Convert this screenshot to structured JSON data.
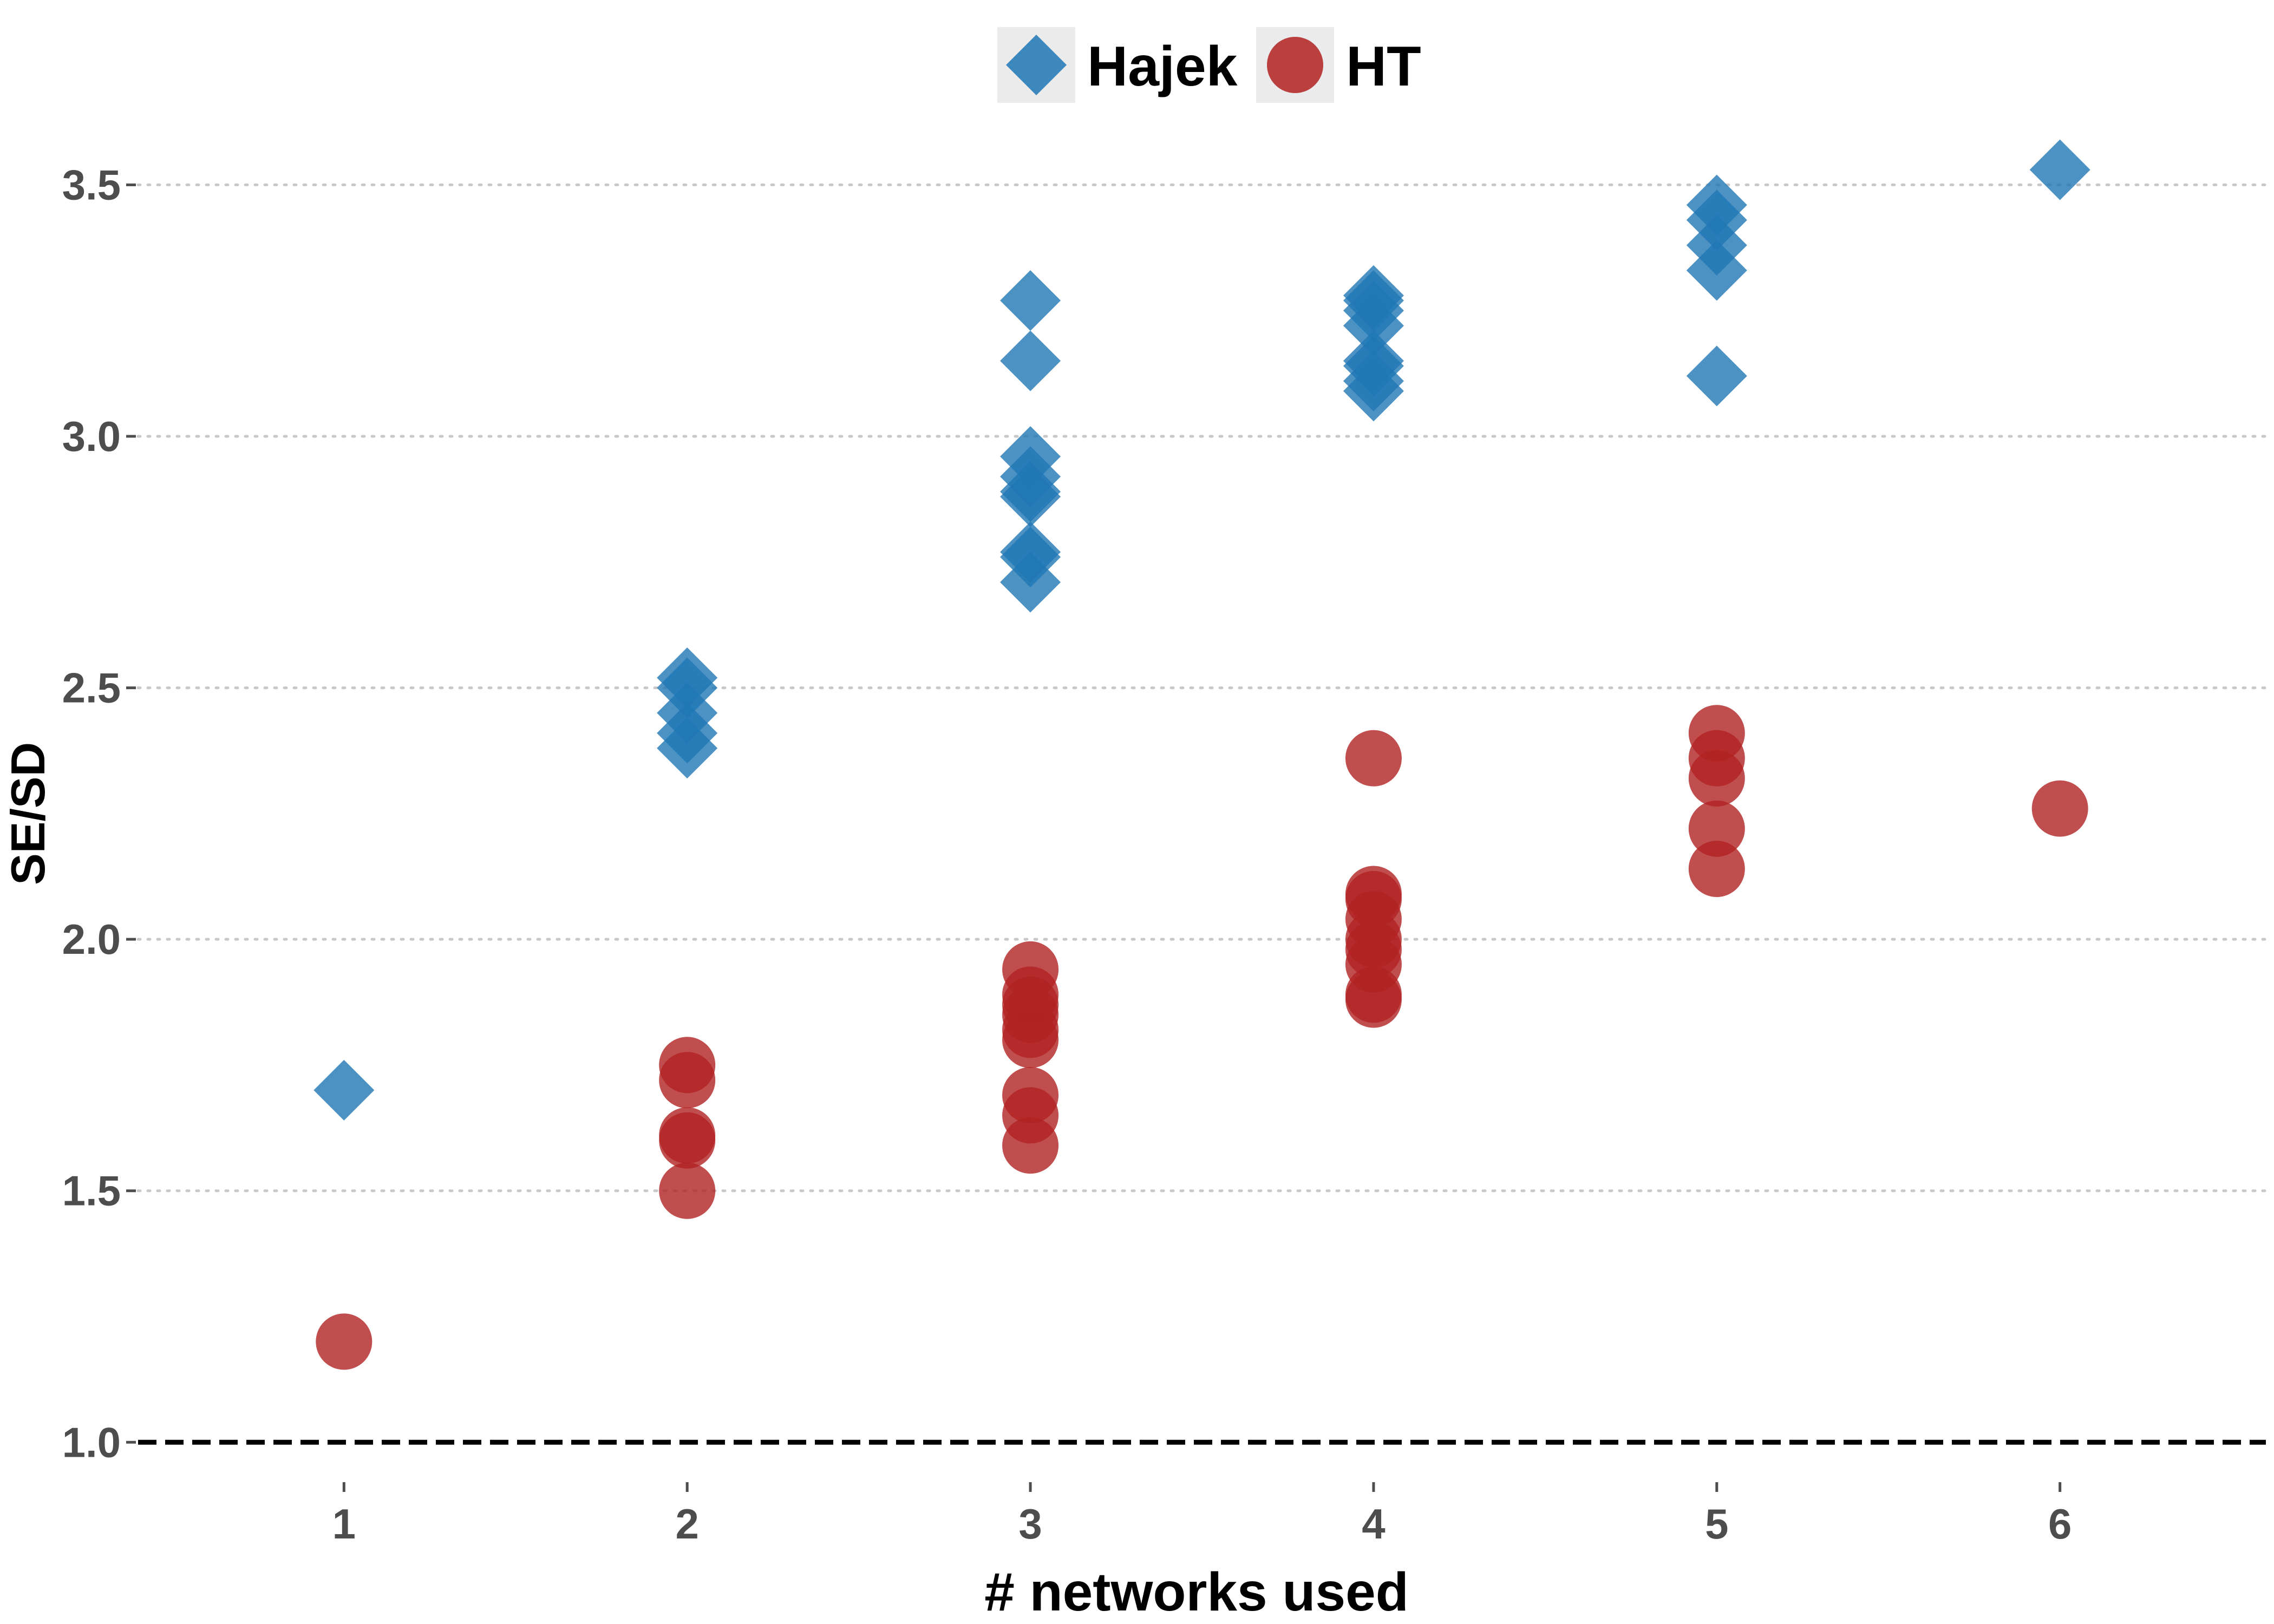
{
  "chart_data": {
    "type": "scatter",
    "xlabel": "# networks used",
    "ylabel": "SE/SD",
    "xlim": [
      0.4,
      6.6
    ],
    "ylim": [
      0.94,
      3.62
    ],
    "x_ticks": [
      1,
      2,
      3,
      4,
      5,
      6
    ],
    "y_ticks": [
      1.0,
      1.5,
      2.0,
      2.5,
      3.0,
      3.5
    ],
    "y_tick_labels": [
      "1.0",
      "1.5",
      "2.0",
      "2.5",
      "3.0",
      "3.5"
    ],
    "grid": "horizontal dotted",
    "reference_line": {
      "y": 1.0,
      "style": "dashed"
    },
    "legend": {
      "position": "top"
    },
    "series": [
      {
        "name": "Hajek",
        "marker": "diamond",
        "color": "#1f77b4",
        "points": [
          {
            "x": 1,
            "y": 1.7
          },
          {
            "x": 2,
            "y": 2.38
          },
          {
            "x": 2,
            "y": 2.41
          },
          {
            "x": 2,
            "y": 2.45
          },
          {
            "x": 2,
            "y": 2.5
          },
          {
            "x": 2,
            "y": 2.52
          },
          {
            "x": 3,
            "y": 2.71
          },
          {
            "x": 3,
            "y": 2.76
          },
          {
            "x": 3,
            "y": 2.77
          },
          {
            "x": 3,
            "y": 2.88
          },
          {
            "x": 3,
            "y": 2.89
          },
          {
            "x": 3,
            "y": 2.92
          },
          {
            "x": 3,
            "y": 2.96
          },
          {
            "x": 3,
            "y": 3.15
          },
          {
            "x": 3,
            "y": 3.27
          },
          {
            "x": 4,
            "y": 3.09
          },
          {
            "x": 4,
            "y": 3.11
          },
          {
            "x": 4,
            "y": 3.14
          },
          {
            "x": 4,
            "y": 3.15
          },
          {
            "x": 4,
            "y": 3.22
          },
          {
            "x": 4,
            "y": 3.25
          },
          {
            "x": 4,
            "y": 3.27
          },
          {
            "x": 4,
            "y": 3.28
          },
          {
            "x": 5,
            "y": 3.12
          },
          {
            "x": 5,
            "y": 3.33
          },
          {
            "x": 5,
            "y": 3.38
          },
          {
            "x": 5,
            "y": 3.43
          },
          {
            "x": 5,
            "y": 3.46
          },
          {
            "x": 6,
            "y": 3.53
          }
        ]
      },
      {
        "name": "HT",
        "marker": "circle",
        "color": "#b22222",
        "points": [
          {
            "x": 1,
            "y": 1.2
          },
          {
            "x": 2,
            "y": 1.5
          },
          {
            "x": 2,
            "y": 1.6
          },
          {
            "x": 2,
            "y": 1.61
          },
          {
            "x": 2,
            "y": 1.72
          },
          {
            "x": 2,
            "y": 1.75
          },
          {
            "x": 3,
            "y": 1.59
          },
          {
            "x": 3,
            "y": 1.65
          },
          {
            "x": 3,
            "y": 1.69
          },
          {
            "x": 3,
            "y": 1.8
          },
          {
            "x": 3,
            "y": 1.82
          },
          {
            "x": 3,
            "y": 1.85
          },
          {
            "x": 3,
            "y": 1.87
          },
          {
            "x": 3,
            "y": 1.89
          },
          {
            "x": 3,
            "y": 1.94
          },
          {
            "x": 4,
            "y": 1.88
          },
          {
            "x": 4,
            "y": 1.89
          },
          {
            "x": 4,
            "y": 1.95
          },
          {
            "x": 4,
            "y": 1.98
          },
          {
            "x": 4,
            "y": 2.0
          },
          {
            "x": 4,
            "y": 2.04
          },
          {
            "x": 4,
            "y": 2.08
          },
          {
            "x": 4,
            "y": 2.09
          },
          {
            "x": 4,
            "y": 2.36
          },
          {
            "x": 5,
            "y": 2.14
          },
          {
            "x": 5,
            "y": 2.22
          },
          {
            "x": 5,
            "y": 2.32
          },
          {
            "x": 5,
            "y": 2.36
          },
          {
            "x": 5,
            "y": 2.41
          },
          {
            "x": 6,
            "y": 2.26
          }
        ]
      }
    ]
  }
}
